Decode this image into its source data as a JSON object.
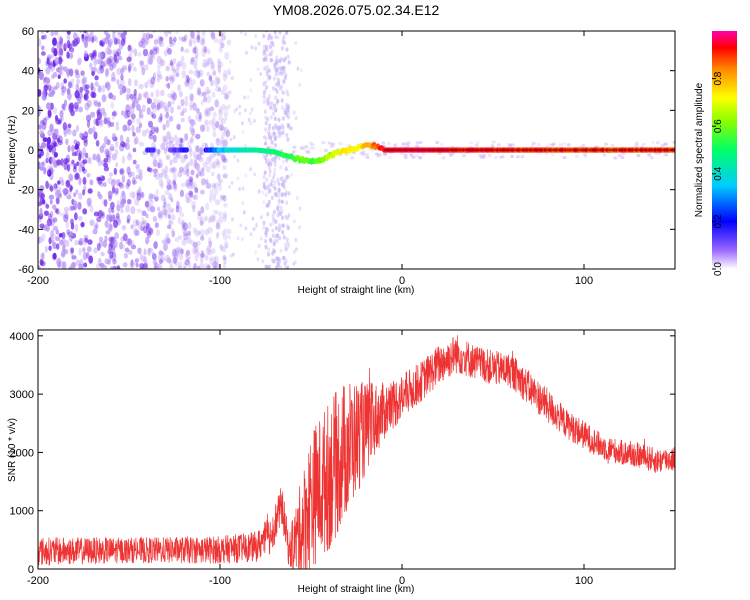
{
  "title": "YM08.2026.075.02.34.E12",
  "charts": [
    {
      "type": "heatmap",
      "xlabel": "Height of straight line (km)",
      "ylabel": "Frequency (Hz)",
      "xlim": [
        -200,
        150
      ],
      "ylim": [
        -60,
        60
      ],
      "x_ticks": [
        "-200",
        "-100",
        "0",
        "100"
      ],
      "y_ticks": [
        "60",
        "40",
        "20",
        "0",
        "-20",
        "-40",
        "-60"
      ],
      "colorbar": {
        "label": "Normalized spectral amplitude",
        "range": [
          0.0,
          1.0
        ],
        "ticks": [
          "0.0",
          "0.2",
          "0.4",
          "0.6",
          "0.8"
        ]
      },
      "trace": {
        "x": [
          -140,
          -130,
          -120,
          -110,
          -100,
          -90,
          -80,
          -70,
          -60,
          -55,
          -50,
          -45,
          -40,
          -35,
          -30,
          -25,
          -20,
          -15,
          -10,
          0,
          50,
          100,
          150
        ],
        "freq": [
          0,
          0,
          0,
          0,
          0,
          0,
          0,
          -1,
          -4,
          -5,
          -6,
          -5,
          -3,
          -1,
          0,
          1,
          3,
          2,
          0,
          0,
          0,
          0,
          0
        ],
        "amplitude": [
          0.15,
          0.12,
          0.15,
          0.12,
          0.35,
          0.4,
          0.45,
          0.5,
          0.55,
          0.6,
          0.55,
          0.6,
          0.65,
          0.7,
          0.75,
          0.7,
          0.8,
          0.85,
          0.95,
          0.95,
          0.92,
          0.9,
          0.9
        ]
      }
    },
    {
      "type": "line",
      "xlabel": "Height of straight line (km)",
      "ylabel": "SNR (10 * v/v)",
      "xlim": [
        -200,
        150
      ],
      "ylim": [
        0,
        4100
      ],
      "x_ticks": [
        "-200",
        "-100",
        "0",
        "100"
      ],
      "y_ticks": [
        "4000",
        "3000",
        "2000",
        "1000",
        "0"
      ],
      "color": "#ee3333",
      "envelope": {
        "x": [
          -200,
          -150,
          -100,
          -80,
          -72,
          -66,
          -62,
          -55,
          -50,
          -40,
          -30,
          -20,
          -10,
          0,
          10,
          20,
          30,
          40,
          50,
          60,
          70,
          80,
          90,
          100,
          110,
          120,
          130,
          140,
          150
        ],
        "mean": [
          300,
          320,
          330,
          380,
          600,
          1100,
          300,
          700,
          1200,
          1600,
          2100,
          2400,
          2700,
          2950,
          3200,
          3500,
          3700,
          3550,
          3450,
          3400,
          3100,
          2800,
          2500,
          2300,
          2100,
          2000,
          1950,
          1850,
          1900
        ],
        "spread": [
          250,
          220,
          240,
          260,
          350,
          350,
          300,
          900,
          1200,
          1300,
          1200,
          800,
          500,
          400,
          350,
          350,
          350,
          300,
          300,
          300,
          300,
          300,
          250,
          250,
          220,
          220,
          220,
          220,
          220
        ]
      }
    }
  ]
}
